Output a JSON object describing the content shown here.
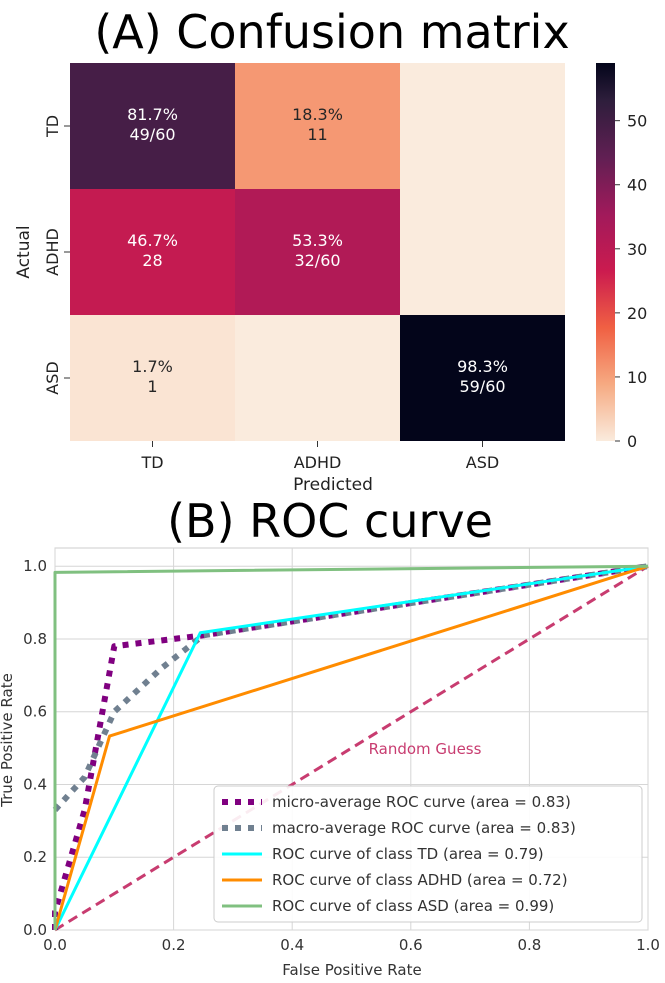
{
  "chart_data": [
    {
      "type": "heatmap",
      "title": "(A) Confusion matrix",
      "xlabel": "Predicted",
      "ylabel": "Actual",
      "row_labels": [
        "TD",
        "ADHD",
        "ASD"
      ],
      "col_labels": [
        "TD",
        "ADHD",
        "ASD"
      ],
      "values": [
        [
          49,
          11,
          0
        ],
        [
          28,
          32,
          0
        ],
        [
          1,
          0,
          59
        ]
      ],
      "cell_text": [
        [
          [
            "81.7%",
            "49/60"
          ],
          [
            "18.3%",
            "11"
          ],
          [
            "",
            ""
          ]
        ],
        [
          [
            "46.7%",
            "28"
          ],
          [
            "53.3%",
            "32/60"
          ],
          [
            "",
            ""
          ]
        ],
        [
          [
            "1.7%",
            "1"
          ],
          [
            "",
            ""
          ],
          [
            "98.3%",
            "59/60"
          ]
        ]
      ],
      "colorbar_ticks": [
        "0",
        "10",
        "20",
        "30",
        "40",
        "50"
      ],
      "colorbar_range": [
        0,
        59
      ],
      "colormap": "rocket_r"
    },
    {
      "type": "line",
      "title": "(B) ROC curve",
      "xlabel": "False Positive Rate",
      "ylabel": "True Positive Rate",
      "xlim": [
        0.0,
        1.0
      ],
      "ylim": [
        0.0,
        1.05
      ],
      "xticks": [
        "0.0",
        "0.2",
        "0.4",
        "0.6",
        "0.8",
        "1.0"
      ],
      "yticks": [
        "0.0",
        "0.2",
        "0.4",
        "0.6",
        "0.8",
        "1.0"
      ],
      "grid": true,
      "legend_position": "lower-right",
      "annotation": "Random Guess",
      "series": [
        {
          "name": "micro-average ROC curve (area = 0.83)",
          "color": "#800080",
          "style": "dotted-thick",
          "points": [
            [
              0.0,
              0.0
            ],
            [
              0.0,
              0.05
            ],
            [
              0.05,
              0.33
            ],
            [
              0.1,
              0.78
            ],
            [
              0.25,
              0.81
            ],
            [
              1.0,
              1.0
            ]
          ]
        },
        {
          "name": "macro-average ROC curve (area = 0.83)",
          "color": "#708090",
          "style": "dotted-thick",
          "points": [
            [
              0.0,
              0.33
            ],
            [
              0.05,
              0.42
            ],
            [
              0.1,
              0.6
            ],
            [
              0.18,
              0.72
            ],
            [
              0.25,
              0.81
            ],
            [
              1.0,
              1.0
            ]
          ]
        },
        {
          "name": "ROC curve of class TD (area = 0.79)",
          "color": "#00ffff",
          "style": "solid",
          "points": [
            [
              0.0,
              0.0
            ],
            [
              0.245,
              0.817
            ],
            [
              1.0,
              1.0
            ]
          ]
        },
        {
          "name": "ROC curve of class ADHD (area = 0.72)",
          "color": "#ff8c00",
          "style": "solid",
          "points": [
            [
              0.0,
              0.0
            ],
            [
              0.092,
              0.533
            ],
            [
              1.0,
              1.0
            ]
          ]
        },
        {
          "name": "ROC curve of class ASD (area = 0.99)",
          "color": "#80c080",
          "style": "solid",
          "points": [
            [
              0.0,
              0.0
            ],
            [
              0.0,
              0.983
            ],
            [
              1.0,
              1.0
            ]
          ]
        }
      ],
      "reference_line": {
        "color": "#c83c70",
        "style": "dashed",
        "points": [
          [
            0.0,
            0.0
          ],
          [
            1.0,
            1.0
          ]
        ]
      }
    }
  ]
}
